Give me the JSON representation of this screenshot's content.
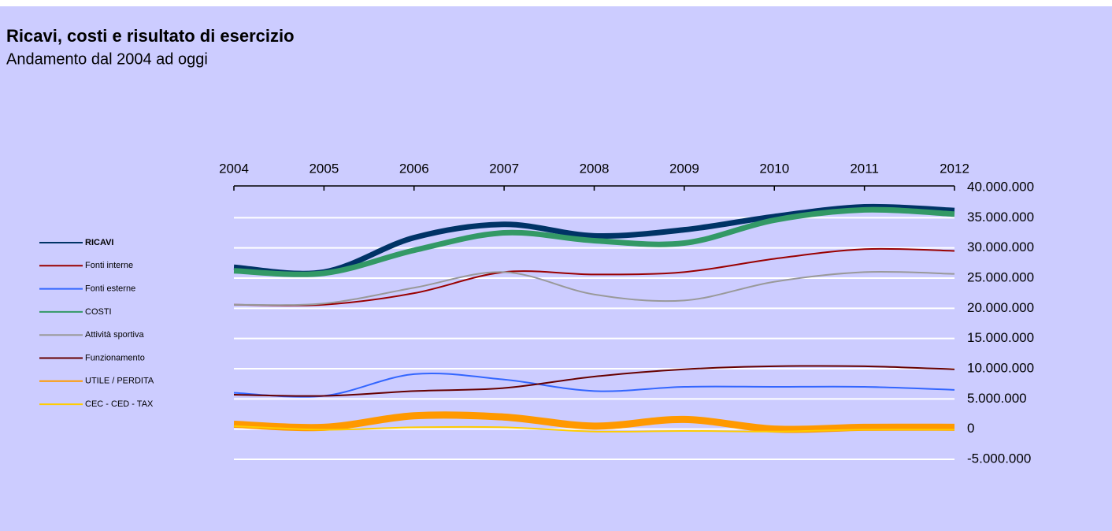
{
  "chart_data": {
    "type": "line",
    "title": "Ricavi, costi e risultato di esercizio",
    "subtitle": "Andamento dal 2004 ad oggi",
    "categories": [
      "2004",
      "2005",
      "2006",
      "2007",
      "2008",
      "2009",
      "2010",
      "2011",
      "2012"
    ],
    "series": [
      {
        "name": "RICAVI",
        "color": "#003366",
        "line_width": 7,
        "values": [
          26800000,
          26000000,
          31700000,
          33900000,
          32000000,
          33000000,
          35200000,
          36800000,
          36200000
        ]
      },
      {
        "name": "Fonti interne",
        "color": "#990000",
        "line_width": 2,
        "values": [
          20600000,
          20600000,
          22500000,
          26000000,
          25600000,
          26000000,
          28200000,
          29800000,
          29500000
        ]
      },
      {
        "name": "Fonti esterne",
        "color": "#3366ff",
        "line_width": 2,
        "values": [
          6000000,
          5500000,
          9100000,
          8200000,
          6300000,
          7000000,
          7000000,
          7000000,
          6500000
        ]
      },
      {
        "name": "COSTI",
        "color": "#339966",
        "line_width": 7,
        "values": [
          26200000,
          25800000,
          29600000,
          32500000,
          31200000,
          30800000,
          34600000,
          36300000,
          35600000
        ]
      },
      {
        "name": "Attività sportiva",
        "color": "#999999",
        "line_width": 2,
        "values": [
          20600000,
          20800000,
          23400000,
          26000000,
          22300000,
          21300000,
          24400000,
          26000000,
          25700000
        ]
      },
      {
        "name": "Funzionamento",
        "color": "#660000",
        "line_width": 2,
        "values": [
          5700000,
          5500000,
          6300000,
          6800000,
          8700000,
          9900000,
          10400000,
          10400000,
          9900000
        ]
      },
      {
        "name": "UTILE / PERDITA",
        "color": "#ff9900",
        "line_width": 9,
        "values": [
          800000,
          300000,
          2200000,
          2000000,
          500000,
          1600000,
          0,
          300000,
          300000
        ]
      },
      {
        "name": "CEC - CED - TAX",
        "color": "#ffcc00",
        "line_width": 2,
        "values": [
          500000,
          -100000,
          300000,
          300000,
          -400000,
          -300000,
          -400000,
          -100000,
          -100000
        ]
      }
    ],
    "ylim": [
      -5000000,
      40000000
    ],
    "yticks": [
      {
        "value": 40000000,
        "label": "40.000.000"
      },
      {
        "value": 35000000,
        "label": "35.000.000"
      },
      {
        "value": 30000000,
        "label": "30.000.000"
      },
      {
        "value": 25000000,
        "label": "25.000.000"
      },
      {
        "value": 20000000,
        "label": "20.000.000"
      },
      {
        "value": 15000000,
        "label": "15.000.000"
      },
      {
        "value": 10000000,
        "label": "10.000.000"
      },
      {
        "value": 5000000,
        "label": "5.000.000"
      },
      0,
      {
        "value": -5000000,
        "label": "-5.000.000"
      }
    ],
    "grid": true
  }
}
